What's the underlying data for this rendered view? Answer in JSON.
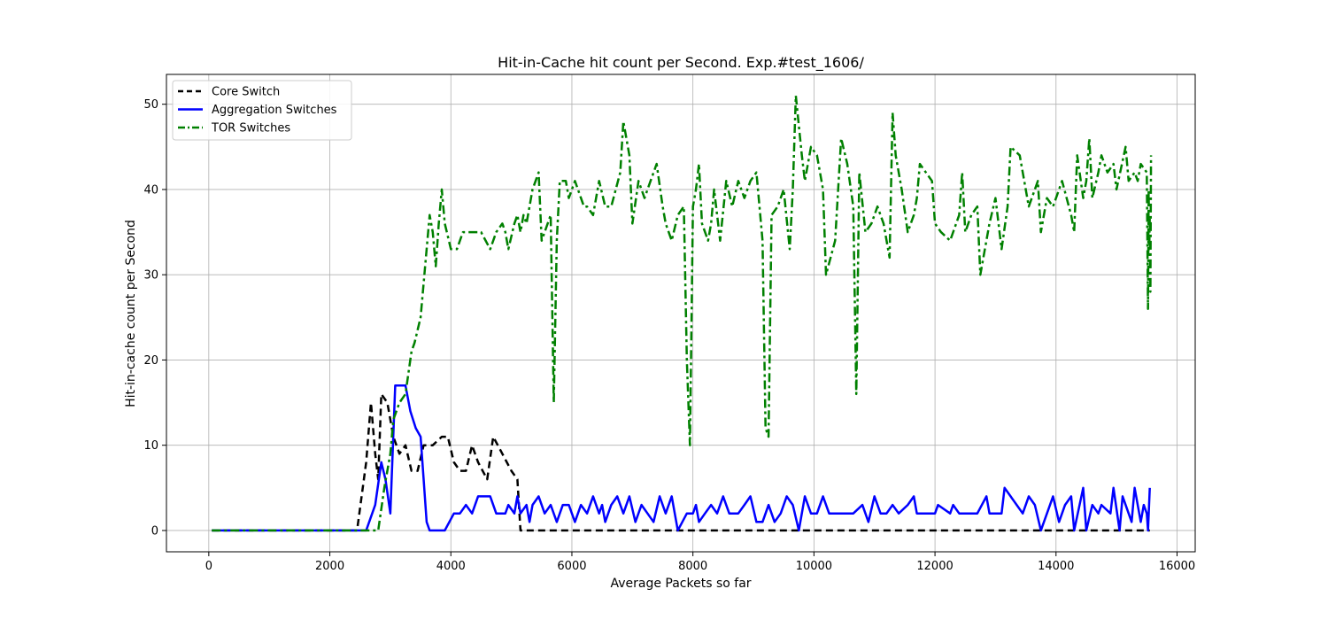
{
  "chart_data": {
    "type": "line",
    "title": "Hit-in-Cache hit count per Second. Exp.#test_1606/",
    "xlabel": "Average Packets so far",
    "ylabel": "Hit-in-cache count per Second",
    "xlim": [
      -700,
      16300
    ],
    "ylim": [
      -2.5,
      53.5
    ],
    "xticks": [
      0,
      2000,
      4000,
      6000,
      8000,
      10000,
      12000,
      14000,
      16000
    ],
    "yticks": [
      0,
      10,
      20,
      30,
      40,
      50
    ],
    "grid": true,
    "legend_position": "top-left",
    "series": [
      {
        "name": "Core Switch",
        "color": "#000000",
        "style": "dashed",
        "points": [
          [
            50,
            0
          ],
          [
            2450,
            0
          ],
          [
            2600,
            8
          ],
          [
            2680,
            15
          ],
          [
            2750,
            9
          ],
          [
            2800,
            6
          ],
          [
            2850,
            16
          ],
          [
            2950,
            15
          ],
          [
            3050,
            11
          ],
          [
            3150,
            9
          ],
          [
            3250,
            10
          ],
          [
            3350,
            7
          ],
          [
            3450,
            7
          ],
          [
            3550,
            10
          ],
          [
            3700,
            10
          ],
          [
            3850,
            11
          ],
          [
            3950,
            11
          ],
          [
            4050,
            8
          ],
          [
            4150,
            7
          ],
          [
            4250,
            7
          ],
          [
            4350,
            10
          ],
          [
            4450,
            8
          ],
          [
            4600,
            6
          ],
          [
            4700,
            11
          ],
          [
            4850,
            9
          ],
          [
            5000,
            7
          ],
          [
            5100,
            6
          ],
          [
            5150,
            0
          ],
          [
            15550,
            0
          ]
        ]
      },
      {
        "name": "Aggregation Switches",
        "color": "#0000ff",
        "style": "solid",
        "points": [
          [
            50,
            0
          ],
          [
            2600,
            0
          ],
          [
            2750,
            3
          ],
          [
            2850,
            8
          ],
          [
            2920,
            6
          ],
          [
            3000,
            2
          ],
          [
            3080,
            17
          ],
          [
            3250,
            17
          ],
          [
            3330,
            14
          ],
          [
            3420,
            12
          ],
          [
            3500,
            11
          ],
          [
            3600,
            1
          ],
          [
            3650,
            0
          ],
          [
            3900,
            0
          ],
          [
            4050,
            2
          ],
          [
            4150,
            2
          ],
          [
            4250,
            3
          ],
          [
            4350,
            2
          ],
          [
            4450,
            4
          ],
          [
            4650,
            4
          ],
          [
            4750,
            2
          ],
          [
            4900,
            2
          ],
          [
            4950,
            3
          ],
          [
            5050,
            2
          ],
          [
            5100,
            4
          ],
          [
            5150,
            2
          ],
          [
            5250,
            3
          ],
          [
            5300,
            1
          ],
          [
            5350,
            3
          ],
          [
            5450,
            4
          ],
          [
            5550,
            2
          ],
          [
            5650,
            3
          ],
          [
            5750,
            1
          ],
          [
            5850,
            3
          ],
          [
            5950,
            3
          ],
          [
            6050,
            1
          ],
          [
            6150,
            3
          ],
          [
            6250,
            2
          ],
          [
            6350,
            4
          ],
          [
            6450,
            2
          ],
          [
            6500,
            3
          ],
          [
            6550,
            1
          ],
          [
            6650,
            3
          ],
          [
            6750,
            4
          ],
          [
            6850,
            2
          ],
          [
            6950,
            4
          ],
          [
            7050,
            1
          ],
          [
            7150,
            3
          ],
          [
            7250,
            2
          ],
          [
            7350,
            1
          ],
          [
            7450,
            4
          ],
          [
            7550,
            2
          ],
          [
            7650,
            4
          ],
          [
            7750,
            0
          ],
          [
            7900,
            2
          ],
          [
            8000,
            2
          ],
          [
            8050,
            3
          ],
          [
            8100,
            1
          ],
          [
            8200,
            2
          ],
          [
            8300,
            3
          ],
          [
            8400,
            2
          ],
          [
            8500,
            4
          ],
          [
            8600,
            2
          ],
          [
            8750,
            2
          ],
          [
            8850,
            3
          ],
          [
            8950,
            4
          ],
          [
            9050,
            1
          ],
          [
            9150,
            1
          ],
          [
            9250,
            3
          ],
          [
            9350,
            1
          ],
          [
            9450,
            2
          ],
          [
            9550,
            4
          ],
          [
            9650,
            3
          ],
          [
            9750,
            0
          ],
          [
            9850,
            4
          ],
          [
            9950,
            2
          ],
          [
            10050,
            2
          ],
          [
            10150,
            4
          ],
          [
            10250,
            2
          ],
          [
            10450,
            2
          ],
          [
            10650,
            2
          ],
          [
            10800,
            3
          ],
          [
            10900,
            1
          ],
          [
            11000,
            4
          ],
          [
            11100,
            2
          ],
          [
            11200,
            2
          ],
          [
            11300,
            3
          ],
          [
            11400,
            2
          ],
          [
            11550,
            3
          ],
          [
            11650,
            4
          ],
          [
            11700,
            2
          ],
          [
            12000,
            2
          ],
          [
            12050,
            3
          ],
          [
            12250,
            2
          ],
          [
            12300,
            3
          ],
          [
            12400,
            2
          ],
          [
            12700,
            2
          ],
          [
            12850,
            4
          ],
          [
            12900,
            2
          ],
          [
            13100,
            2
          ],
          [
            13150,
            5
          ],
          [
            13250,
            4
          ],
          [
            13350,
            3
          ],
          [
            13450,
            2
          ],
          [
            13550,
            4
          ],
          [
            13650,
            3
          ],
          [
            13750,
            0
          ],
          [
            13900,
            3
          ],
          [
            13950,
            4
          ],
          [
            14050,
            1
          ],
          [
            14150,
            3
          ],
          [
            14250,
            4
          ],
          [
            14300,
            0
          ],
          [
            14450,
            5
          ],
          [
            14500,
            0
          ],
          [
            14600,
            3
          ],
          [
            14700,
            2
          ],
          [
            14750,
            3
          ],
          [
            14900,
            2
          ],
          [
            14950,
            5
          ],
          [
            15050,
            0
          ],
          [
            15100,
            4
          ],
          [
            15250,
            1
          ],
          [
            15300,
            5
          ],
          [
            15400,
            1
          ],
          [
            15450,
            3
          ],
          [
            15500,
            2
          ],
          [
            15520,
            0
          ],
          [
            15550,
            5
          ]
        ]
      },
      {
        "name": "TOR Switches",
        "color": "#008000",
        "style": "dashdot",
        "points": [
          [
            50,
            0
          ],
          [
            2800,
            0
          ],
          [
            2900,
            5
          ],
          [
            3000,
            9
          ],
          [
            3050,
            13
          ],
          [
            3150,
            15
          ],
          [
            3250,
            16
          ],
          [
            3350,
            21
          ],
          [
            3400,
            22
          ],
          [
            3500,
            25
          ],
          [
            3550,
            29
          ],
          [
            3600,
            33
          ],
          [
            3650,
            37
          ],
          [
            3700,
            35
          ],
          [
            3750,
            31
          ],
          [
            3800,
            36
          ],
          [
            3850,
            40
          ],
          [
            3900,
            36
          ],
          [
            4000,
            33
          ],
          [
            4100,
            33
          ],
          [
            4200,
            35
          ],
          [
            4400,
            35
          ],
          [
            4500,
            35
          ],
          [
            4650,
            33
          ],
          [
            4750,
            35
          ],
          [
            4850,
            36
          ],
          [
            4900,
            35
          ],
          [
            4950,
            33
          ],
          [
            5050,
            36
          ],
          [
            5100,
            37
          ],
          [
            5150,
            35
          ],
          [
            5200,
            37
          ],
          [
            5250,
            36
          ],
          [
            5350,
            40
          ],
          [
            5450,
            42
          ],
          [
            5500,
            34
          ],
          [
            5600,
            36
          ],
          [
            5650,
            37
          ],
          [
            5700,
            15
          ],
          [
            5750,
            34
          ],
          [
            5800,
            41
          ],
          [
            5900,
            41
          ],
          [
            5950,
            39
          ],
          [
            6050,
            41
          ],
          [
            6100,
            40
          ],
          [
            6150,
            39
          ],
          [
            6200,
            38
          ],
          [
            6250,
            38
          ],
          [
            6350,
            37
          ],
          [
            6450,
            41
          ],
          [
            6550,
            38
          ],
          [
            6650,
            38
          ],
          [
            6800,
            42
          ],
          [
            6850,
            48
          ],
          [
            6950,
            44
          ],
          [
            7000,
            36
          ],
          [
            7100,
            41
          ],
          [
            7200,
            39
          ],
          [
            7300,
            41
          ],
          [
            7400,
            43
          ],
          [
            7500,
            38
          ],
          [
            7550,
            36
          ],
          [
            7650,
            34
          ],
          [
            7750,
            37
          ],
          [
            7850,
            38
          ],
          [
            7900,
            20
          ],
          [
            7950,
            10
          ],
          [
            8000,
            38
          ],
          [
            8050,
            40
          ],
          [
            8100,
            43
          ],
          [
            8150,
            36
          ],
          [
            8250,
            34
          ],
          [
            8300,
            36
          ],
          [
            8350,
            40
          ],
          [
            8450,
            34
          ],
          [
            8550,
            41
          ],
          [
            8650,
            38
          ],
          [
            8750,
            41
          ],
          [
            8850,
            39
          ],
          [
            8950,
            41
          ],
          [
            9050,
            42
          ],
          [
            9150,
            34
          ],
          [
            9200,
            12
          ],
          [
            9250,
            11
          ],
          [
            9300,
            37
          ],
          [
            9400,
            38
          ],
          [
            9500,
            40
          ],
          [
            9600,
            33
          ],
          [
            9650,
            40
          ],
          [
            9700,
            51
          ],
          [
            9800,
            44
          ],
          [
            9850,
            41
          ],
          [
            9950,
            45
          ],
          [
            10050,
            44
          ],
          [
            10150,
            40
          ],
          [
            10200,
            30
          ],
          [
            10350,
            34
          ],
          [
            10450,
            46
          ],
          [
            10550,
            43
          ],
          [
            10650,
            38
          ],
          [
            10700,
            16
          ],
          [
            10750,
            42
          ],
          [
            10850,
            35
          ],
          [
            10950,
            36
          ],
          [
            11050,
            38
          ],
          [
            11150,
            36
          ],
          [
            11250,
            32
          ],
          [
            11300,
            49
          ],
          [
            11350,
            44
          ],
          [
            11450,
            40
          ],
          [
            11550,
            35
          ],
          [
            11650,
            37
          ],
          [
            11700,
            39
          ],
          [
            11750,
            43
          ],
          [
            11850,
            42
          ],
          [
            11950,
            41
          ],
          [
            12000,
            36
          ],
          [
            12100,
            35
          ],
          [
            12250,
            34
          ],
          [
            12400,
            37
          ],
          [
            12450,
            42
          ],
          [
            12500,
            35
          ],
          [
            12600,
            37
          ],
          [
            12700,
            38
          ],
          [
            12750,
            30
          ],
          [
            12900,
            36
          ],
          [
            13000,
            39
          ],
          [
            13100,
            33
          ],
          [
            13200,
            38
          ],
          [
            13250,
            45
          ],
          [
            13400,
            44
          ],
          [
            13550,
            38
          ],
          [
            13650,
            40
          ],
          [
            13700,
            41
          ],
          [
            13750,
            35
          ],
          [
            13850,
            39
          ],
          [
            13950,
            38
          ],
          [
            14100,
            41
          ],
          [
            14250,
            37
          ],
          [
            14300,
            35
          ],
          [
            14350,
            44
          ],
          [
            14450,
            39
          ],
          [
            14500,
            41
          ],
          [
            14550,
            46
          ],
          [
            14600,
            39
          ],
          [
            14700,
            42
          ],
          [
            14750,
            44
          ],
          [
            14850,
            42
          ],
          [
            14950,
            43
          ],
          [
            15000,
            40
          ],
          [
            15150,
            45
          ],
          [
            15200,
            41
          ],
          [
            15300,
            42
          ],
          [
            15350,
            41
          ],
          [
            15400,
            43
          ],
          [
            15500,
            42
          ],
          [
            15520,
            26
          ],
          [
            15530,
            40
          ],
          [
            15540,
            33
          ],
          [
            15550,
            37
          ],
          [
            15560,
            28
          ],
          [
            15570,
            44
          ]
        ]
      }
    ]
  }
}
